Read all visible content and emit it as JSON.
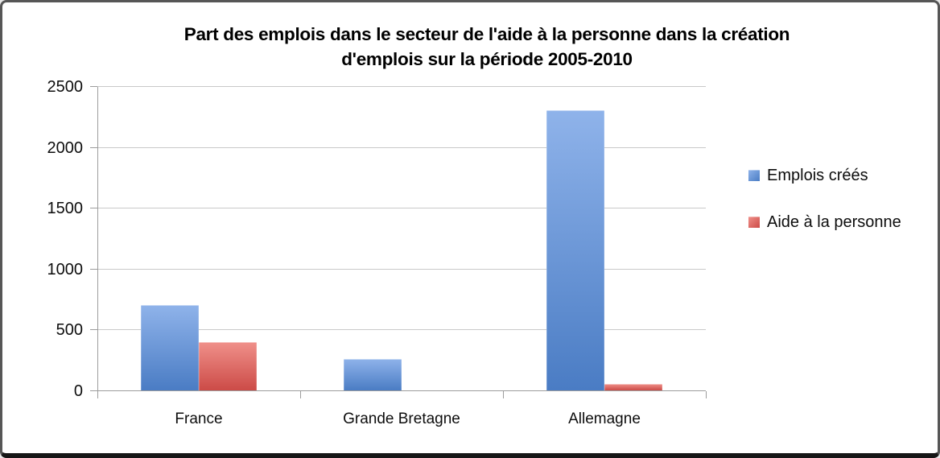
{
  "window": {
    "background": "#ffffff",
    "border_color": "#565656",
    "bottom_edge_color": "#161616"
  },
  "chart_data": {
    "type": "bar",
    "title": "Part des emplois dans le secteur de l'aide à la personne dans la création d'emplois sur la période 2005-2010",
    "title_lines": [
      "Part des emplois dans le secteur de l'aide à la personne dans la création",
      "d'emplois sur la période 2005-2010"
    ],
    "categories": [
      "France",
      "Grande Bretagne",
      "Allemagne"
    ],
    "series": [
      {
        "name": "Emplois créés",
        "values": [
          700,
          260,
          2300
        ],
        "color": "#4f81bd",
        "gradient_top": "#8fb3ea",
        "gradient_bottom": "#4a7cc4"
      },
      {
        "name": "Aide à la personne",
        "values": [
          400,
          0,
          50
        ],
        "color": "#c0504d",
        "gradient_top": "#f0908a",
        "gradient_bottom": "#cc4b47"
      }
    ],
    "xlabel": "",
    "ylabel": "",
    "ylim": [
      0,
      2500
    ],
    "yticks": [
      0,
      500,
      1000,
      1500,
      2000,
      2500
    ],
    "grid": true,
    "legend_position": "right",
    "gridline_color": "#c9c9c9",
    "axis_color": "#9c9c9c",
    "text_color": "#0d0d0d"
  }
}
